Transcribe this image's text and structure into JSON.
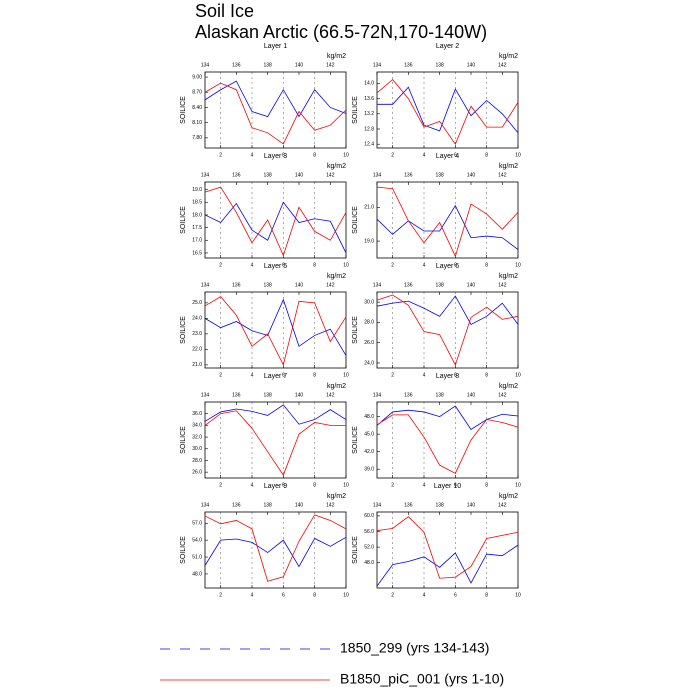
{
  "header": {
    "title": "Soil Ice",
    "subtitle": "Alaskan Arctic (66.5-72N,170-140W)"
  },
  "legend": [
    {
      "name": "1850_299 (yrs 134-143)",
      "color": "#0000ff",
      "dash": true
    },
    {
      "name": "B1850_piC_001 (yrs 1-10)",
      "color": "#ff0000",
      "dash": false
    }
  ],
  "chart_data": [
    {
      "type": "line",
      "title": "Layer 1",
      "ylabel": "SOILICE",
      "units": "kg/m2",
      "grid": true,
      "x": [
        1,
        2,
        3,
        4,
        5,
        6,
        7,
        8,
        9,
        10
      ],
      "x2": [
        134,
        135,
        136,
        137,
        138,
        139,
        140,
        141,
        142,
        143
      ],
      "xlim": [
        1,
        10
      ],
      "xticks": [
        2,
        4,
        6,
        8,
        10
      ],
      "x2lim": [
        134,
        143
      ],
      "x2ticks": [
        134,
        136,
        138,
        140,
        142
      ],
      "ylim": [
        7.6,
        9.1
      ],
      "yticks": [
        {
          "value": 7.8,
          "label": "7.80"
        },
        {
          "value": 8.1,
          "label": "8.10"
        },
        {
          "value": 8.4,
          "label": "8.40"
        },
        {
          "value": 8.7,
          "label": "8.70"
        },
        {
          "value": 9.0,
          "label": "9.00"
        }
      ],
      "series": [
        {
          "axis": "x2",
          "values": [
            8.55,
            8.75,
            8.92,
            8.32,
            8.22,
            8.75,
            8.22,
            8.75,
            8.4,
            8.28
          ]
        },
        {
          "values": [
            8.7,
            8.88,
            8.75,
            8.0,
            7.9,
            7.68,
            8.32,
            7.95,
            8.05,
            8.35
          ]
        }
      ]
    },
    {
      "type": "line",
      "title": "Layer 2",
      "ylabel": "SOILICE",
      "units": "kg/m2",
      "grid": true,
      "x": [
        1,
        2,
        3,
        4,
        5,
        6,
        7,
        8,
        9,
        10
      ],
      "x2": [
        134,
        135,
        136,
        137,
        138,
        139,
        140,
        141,
        142,
        143
      ],
      "xlim": [
        1,
        10
      ],
      "xticks": [
        2,
        4,
        6,
        8,
        10
      ],
      "x2lim": [
        134,
        143
      ],
      "x2ticks": [
        134,
        136,
        138,
        140,
        142
      ],
      "ylim": [
        12.3,
        14.3
      ],
      "yticks": [
        12.4,
        12.8,
        13.2,
        13.6,
        {
          "value": 14.0,
          "label": "14.0"
        }
      ],
      "series": [
        {
          "axis": "x2",
          "values": [
            13.45,
            13.45,
            13.9,
            12.9,
            12.75,
            13.85,
            13.15,
            13.55,
            13.2,
            12.7
          ]
        },
        {
          "values": [
            13.75,
            14.1,
            13.6,
            12.85,
            13.0,
            12.4,
            13.4,
            12.85,
            12.85,
            13.5
          ]
        }
      ]
    },
    {
      "type": "line",
      "title": "Layer 3",
      "ylabel": "SOILICE",
      "units": "kg/m2",
      "grid": true,
      "x": [
        1,
        2,
        3,
        4,
        5,
        6,
        7,
        8,
        9,
        10
      ],
      "x2": [
        134,
        135,
        136,
        137,
        138,
        139,
        140,
        141,
        142,
        143
      ],
      "xlim": [
        1,
        10
      ],
      "xticks": [
        2,
        4,
        6,
        8,
        10
      ],
      "x2lim": [
        134,
        143
      ],
      "x2ticks": [
        134,
        136,
        138,
        140,
        142
      ],
      "ylim": [
        16.3,
        19.3
      ],
      "yticks": [
        16.5,
        {
          "value": 17.0,
          "label": "17.0"
        },
        17.5,
        {
          "value": 18.0,
          "label": "18.0"
        },
        18.5,
        {
          "value": 19.0,
          "label": "19.0"
        }
      ],
      "series": [
        {
          "axis": "x2",
          "values": [
            18.0,
            17.7,
            18.45,
            17.4,
            17.0,
            18.5,
            17.7,
            17.85,
            17.75,
            16.5
          ]
        },
        {
          "values": [
            18.9,
            19.1,
            18.1,
            16.9,
            17.8,
            16.4,
            18.3,
            17.35,
            17.0,
            18.1
          ]
        }
      ]
    },
    {
      "type": "line",
      "title": "Layer 4",
      "ylabel": "SOILICE",
      "units": "kg/m2",
      "grid": true,
      "x": [
        1,
        2,
        3,
        4,
        5,
        6,
        7,
        8,
        9,
        10
      ],
      "x2": [
        134,
        135,
        136,
        137,
        138,
        139,
        140,
        141,
        142,
        143
      ],
      "xlim": [
        1,
        10
      ],
      "xticks": [
        2,
        4,
        6,
        8,
        10
      ],
      "x2lim": [
        134,
        143
      ],
      "x2ticks": [
        134,
        136,
        138,
        140,
        142
      ],
      "ylim": [
        18.0,
        22.5
      ],
      "yticks": [
        {
          "value": 19.0,
          "label": "19.0"
        },
        {
          "value": 21.0,
          "label": "21.0"
        }
      ],
      "series": [
        {
          "axis": "x2",
          "values": [
            20.3,
            19.4,
            20.2,
            19.6,
            19.6,
            21.1,
            19.2,
            19.3,
            19.2,
            18.5
          ]
        },
        {
          "values": [
            22.2,
            22.1,
            20.2,
            18.9,
            20.1,
            18.1,
            21.2,
            20.6,
            19.7,
            20.7
          ]
        }
      ]
    },
    {
      "type": "line",
      "title": "Layer 5",
      "ylabel": "SOILICE",
      "units": "kg/m2",
      "grid": true,
      "x": [
        1,
        2,
        3,
        4,
        5,
        6,
        7,
        8,
        9,
        10
      ],
      "x2": [
        134,
        135,
        136,
        137,
        138,
        139,
        140,
        141,
        142,
        143
      ],
      "xlim": [
        1,
        10
      ],
      "xticks": [
        2,
        4,
        6,
        8,
        10
      ],
      "x2lim": [
        134,
        143
      ],
      "x2ticks": [
        134,
        136,
        138,
        140,
        142
      ],
      "ylim": [
        20.8,
        25.7
      ],
      "yticks": [
        {
          "value": 21.0,
          "label": "21.0"
        },
        {
          "value": 22.0,
          "label": "22.0"
        },
        {
          "value": 23.0,
          "label": "23.0"
        },
        {
          "value": 24.0,
          "label": "24.0"
        },
        {
          "value": 25.0,
          "label": "25.0"
        }
      ],
      "series": [
        {
          "axis": "x2",
          "values": [
            24.0,
            23.4,
            23.8,
            23.2,
            22.9,
            25.2,
            22.2,
            22.9,
            23.3,
            21.6
          ]
        },
        {
          "values": [
            24.8,
            25.4,
            24.2,
            22.2,
            23.0,
            21.0,
            25.1,
            25.0,
            22.5,
            24.1
          ]
        }
      ]
    },
    {
      "type": "line",
      "title": "Layer 6",
      "ylabel": "SOILICE",
      "units": "kg/m2",
      "grid": true,
      "x": [
        1,
        2,
        3,
        4,
        5,
        6,
        7,
        8,
        9,
        10
      ],
      "x2": [
        134,
        135,
        136,
        137,
        138,
        139,
        140,
        141,
        142,
        143
      ],
      "xlim": [
        1,
        10
      ],
      "xticks": [
        2,
        4,
        6,
        8,
        10
      ],
      "x2lim": [
        134,
        143
      ],
      "x2ticks": [
        134,
        136,
        138,
        140,
        142
      ],
      "ylim": [
        23.5,
        31.0
      ],
      "yticks": [
        {
          "value": 24.0,
          "label": "24.0"
        },
        {
          "value": 26.0,
          "label": "26.0"
        },
        {
          "value": 28.0,
          "label": "28.0"
        },
        {
          "value": 30.0,
          "label": "30.0"
        }
      ],
      "series": [
        {
          "axis": "x2",
          "values": [
            29.6,
            29.9,
            30.1,
            29.4,
            28.6,
            30.6,
            27.8,
            28.6,
            29.9,
            27.8
          ]
        },
        {
          "values": [
            30.2,
            30.7,
            29.7,
            27.1,
            26.8,
            23.8,
            28.5,
            29.5,
            28.3,
            28.6
          ]
        }
      ]
    },
    {
      "type": "line",
      "title": "Layer 7",
      "ylabel": "SOILICE",
      "units": "kg/m2",
      "grid": true,
      "x": [
        1,
        2,
        3,
        4,
        5,
        6,
        7,
        8,
        9,
        10
      ],
      "x2": [
        134,
        135,
        136,
        137,
        138,
        139,
        140,
        141,
        142,
        143
      ],
      "xlim": [
        1,
        10
      ],
      "xticks": [
        2,
        4,
        6,
        8,
        10
      ],
      "x2lim": [
        134,
        143
      ],
      "x2ticks": [
        134,
        136,
        138,
        140,
        142
      ],
      "ylim": [
        25.0,
        38.0
      ],
      "yticks": [
        {
          "value": 26.0,
          "label": "26.0"
        },
        {
          "value": 28.0,
          "label": "28.0"
        },
        {
          "value": 30.0,
          "label": "30.0"
        },
        {
          "value": 32.0,
          "label": "32.0"
        },
        {
          "value": 34.0,
          "label": "34.0"
        },
        {
          "value": 36.0,
          "label": "36.0"
        }
      ],
      "series": [
        {
          "axis": "x2",
          "values": [
            34.7,
            36.3,
            36.8,
            36.4,
            35.7,
            37.5,
            34.2,
            35.0,
            36.7,
            35.0
          ]
        },
        {
          "values": [
            34.0,
            36.0,
            36.5,
            33.5,
            29.5,
            25.5,
            32.5,
            34.5,
            34.0,
            34.0
          ]
        }
      ]
    },
    {
      "type": "line",
      "title": "Layer 8",
      "ylabel": "SOILICE",
      "units": "kg/m2",
      "grid": true,
      "x": [
        1,
        2,
        3,
        4,
        5,
        6,
        7,
        8,
        9,
        10
      ],
      "x2": [
        134,
        135,
        136,
        137,
        138,
        139,
        140,
        141,
        142,
        143
      ],
      "xlim": [
        1,
        10
      ],
      "xticks": [
        2,
        4,
        6,
        8,
        10
      ],
      "x2lim": [
        134,
        143
      ],
      "x2ticks": [
        134,
        136,
        138,
        140,
        142
      ],
      "ylim": [
        37.5,
        50.5
      ],
      "yticks": [
        {
          "value": 39.0,
          "label": "39.0"
        },
        {
          "value": 42.0,
          "label": "42.0"
        },
        {
          "value": 45.0,
          "label": "45.0"
        },
        {
          "value": 48.0,
          "label": "48.0"
        }
      ],
      "series": [
        {
          "axis": "x2",
          "values": [
            46.5,
            48.8,
            49.1,
            48.8,
            48.0,
            49.8,
            45.8,
            47.5,
            48.4,
            48.1
          ]
        },
        {
          "values": [
            46.6,
            48.3,
            48.3,
            44.5,
            39.7,
            38.3,
            44.0,
            47.5,
            47.0,
            46.2
          ]
        }
      ]
    },
    {
      "type": "line",
      "title": "Layer 9",
      "ylabel": "SOILICE",
      "units": "kg/m2",
      "grid": true,
      "x": [
        1,
        2,
        3,
        4,
        5,
        6,
        7,
        8,
        9,
        10
      ],
      "x2": [
        134,
        135,
        136,
        137,
        138,
        139,
        140,
        141,
        142,
        143
      ],
      "xlim": [
        1,
        10
      ],
      "xticks": [
        2,
        4,
        6,
        8,
        10
      ],
      "x2lim": [
        134,
        143
      ],
      "x2ticks": [
        134,
        136,
        138,
        140,
        142
      ],
      "ylim": [
        45.5,
        59.0
      ],
      "yticks": [
        {
          "value": 48.0,
          "label": "48.0"
        },
        {
          "value": 51.0,
          "label": "51.0"
        },
        {
          "value": 54.0,
          "label": "54.0"
        },
        {
          "value": 57.0,
          "label": "57.0"
        }
      ],
      "series": [
        {
          "axis": "x2",
          "values": [
            49.5,
            54.0,
            54.2,
            53.6,
            51.8,
            54.0,
            49.3,
            54.3,
            52.9,
            54.5
          ]
        },
        {
          "values": [
            58.3,
            56.9,
            57.5,
            56.0,
            46.7,
            47.5,
            53.8,
            58.5,
            57.5,
            56.0
          ]
        }
      ]
    },
    {
      "type": "line",
      "title": "Layer 10",
      "ylabel": "SOILICE",
      "units": "kg/m2",
      "grid": true,
      "x": [
        1,
        2,
        3,
        4,
        5,
        6,
        7,
        8,
        9,
        10
      ],
      "x2": [
        134,
        135,
        136,
        137,
        138,
        139,
        140,
        141,
        142,
        143
      ],
      "xlim": [
        1,
        10
      ],
      "xticks": [
        2,
        4,
        6,
        8,
        10
      ],
      "x2lim": [
        134,
        143
      ],
      "x2ticks": [
        134,
        136,
        138,
        140,
        142
      ],
      "ylim": [
        41.5,
        61.0
      ],
      "yticks": [
        {
          "value": 48.0,
          "label": "48.0"
        },
        {
          "value": 52.0,
          "label": "52.0"
        },
        {
          "value": 56.0,
          "label": "56.0"
        },
        {
          "value": 60.0,
          "label": "60.0"
        }
      ],
      "series": [
        {
          "axis": "x2",
          "values": [
            42.0,
            47.5,
            48.3,
            49.5,
            46.8,
            50.5,
            42.8,
            50.2,
            49.8,
            52.5
          ]
        },
        {
          "values": [
            56.2,
            56.8,
            59.8,
            55.8,
            44.0,
            44.3,
            47.0,
            54.2,
            55.0,
            55.8
          ]
        }
      ]
    }
  ]
}
